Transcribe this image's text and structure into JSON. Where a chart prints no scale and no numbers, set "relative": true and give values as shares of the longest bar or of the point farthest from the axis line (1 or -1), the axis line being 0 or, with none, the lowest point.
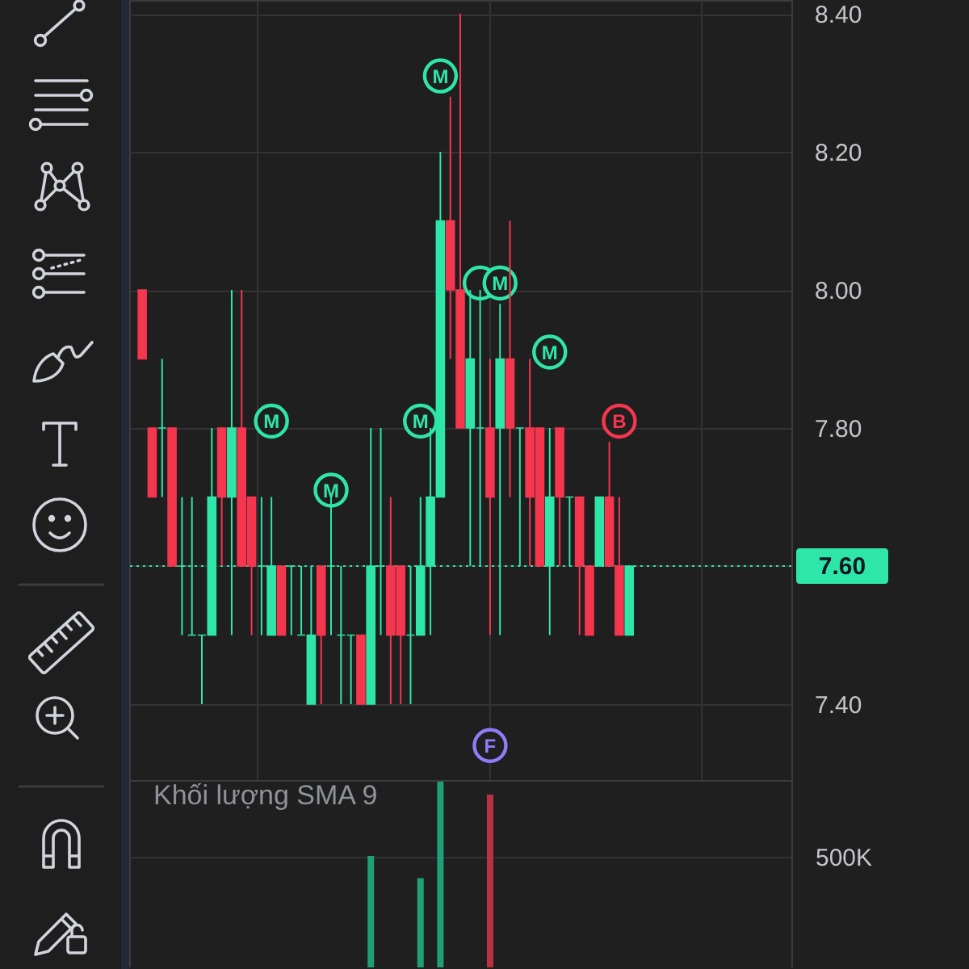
{
  "chart_data": [
    {
      "type": "candlestick",
      "categories": [
        null,
        null,
        null,
        null,
        null,
        null,
        null,
        null,
        null,
        null,
        null,
        null,
        null,
        null,
        null,
        null,
        null,
        null,
        null,
        null,
        null,
        null,
        null,
        null,
        null,
        null,
        null,
        null,
        null,
        null,
        null,
        null,
        null,
        null,
        null,
        null,
        null,
        null,
        null,
        null,
        null,
        null,
        null,
        null,
        null,
        null,
        null,
        null,
        null,
        null,
        null,
        null,
        null,
        null,
        null,
        null,
        null,
        null,
        null,
        null,
        null,
        null,
        null,
        null,
        null
      ],
      "ohlc": [
        [
          8.0,
          8.0,
          7.9,
          7.9
        ],
        [
          7.8,
          7.8,
          7.7,
          7.7
        ],
        [
          7.8,
          7.9,
          7.7,
          7.8
        ],
        [
          7.8,
          7.8,
          7.6,
          7.6
        ],
        [
          7.6,
          7.7,
          7.5,
          7.6
        ],
        [
          7.5,
          7.7,
          7.5,
          7.5
        ],
        [
          7.5,
          7.5,
          7.4,
          7.5
        ],
        [
          7.5,
          7.8,
          7.5,
          7.7
        ],
        [
          7.8,
          7.8,
          7.6,
          7.7
        ],
        [
          7.7,
          8.0,
          7.5,
          7.8
        ],
        [
          7.8,
          8.0,
          7.6,
          7.6
        ],
        [
          7.7,
          7.7,
          7.5,
          7.6
        ],
        [
          7.6,
          7.7,
          7.5,
          7.6
        ],
        [
          7.5,
          7.7,
          7.5,
          7.6
        ],
        [
          7.6,
          7.6,
          7.5,
          7.5
        ],
        [
          7.6,
          7.6,
          7.5,
          7.6
        ],
        [
          7.5,
          7.6,
          7.5,
          7.5
        ],
        [
          7.4,
          7.6,
          7.4,
          7.5
        ],
        [
          7.6,
          7.6,
          7.4,
          7.5
        ],
        [
          7.6,
          7.7,
          7.5,
          7.6
        ],
        [
          7.5,
          7.6,
          7.4,
          7.5
        ],
        [
          7.5,
          7.5,
          7.4,
          7.5
        ],
        [
          7.5,
          7.5,
          7.4,
          7.4
        ],
        [
          7.4,
          7.8,
          7.4,
          7.6
        ],
        [
          7.6,
          7.8,
          7.5,
          7.6
        ],
        [
          7.6,
          7.7,
          7.4,
          7.5
        ],
        [
          7.6,
          7.6,
          7.4,
          7.5
        ],
        [
          7.5,
          7.6,
          7.4,
          7.5
        ],
        [
          7.5,
          7.7,
          7.5,
          7.6
        ],
        [
          7.6,
          7.8,
          7.5,
          7.7
        ],
        [
          7.7,
          8.2,
          7.7,
          8.1
        ],
        [
          8.1,
          8.28,
          7.9,
          8.0
        ],
        [
          8.0,
          8.4,
          7.8,
          7.8
        ],
        [
          7.8,
          8.0,
          7.6,
          7.9
        ],
        [
          7.8,
          8.0,
          7.6,
          7.8
        ],
        [
          7.8,
          7.9,
          7.5,
          7.7
        ],
        [
          7.8,
          7.98,
          7.5,
          7.9
        ],
        [
          7.9,
          8.1,
          7.7,
          7.8
        ],
        [
          7.8,
          7.8,
          7.6,
          7.8
        ],
        [
          7.8,
          7.9,
          7.6,
          7.7
        ],
        [
          7.8,
          7.8,
          7.6,
          7.6
        ],
        [
          7.6,
          7.8,
          7.5,
          7.7
        ],
        [
          7.8,
          7.8,
          7.6,
          7.7
        ],
        [
          7.7,
          7.7,
          7.6,
          7.7
        ],
        [
          7.7,
          7.7,
          7.5,
          7.6
        ],
        [
          7.6,
          7.6,
          7.5,
          7.5
        ],
        [
          7.6,
          7.7,
          7.6,
          7.7
        ],
        [
          7.7,
          7.78,
          7.6,
          7.6
        ],
        [
          7.6,
          7.7,
          7.5,
          7.5
        ],
        [
          7.5,
          7.6,
          7.5,
          7.6
        ],
        null,
        null,
        null,
        null,
        null,
        null,
        null,
        null,
        null,
        null,
        null,
        null,
        null,
        null,
        null
      ],
      "colors": [
        "#f5364f",
        "#f5364f",
        "#2ee6a8",
        "#f5364f",
        "#2ee6a8",
        "#2ee6a8",
        "#2ee6a8",
        "#2ee6a8",
        "#f5364f",
        "#2ee6a8",
        "#f5364f",
        "#f5364f",
        "#2ee6a8",
        "#2ee6a8",
        "#f5364f",
        "#2ee6a8",
        "#2ee6a8",
        "#2ee6a8",
        "#f5364f",
        "#2ee6a8",
        "#2ee6a8",
        "#2ee6a8",
        "#f5364f",
        "#2ee6a8",
        "#2ee6a8",
        "#f5364f",
        "#f5364f",
        "#2ee6a8",
        "#2ee6a8",
        "#2ee6a8",
        "#2ee6a8",
        "#f5364f",
        "#f5364f",
        "#2ee6a8",
        "#2ee6a8",
        "#f5364f",
        "#2ee6a8",
        "#f5364f",
        "#2ee6a8",
        "#f5364f",
        "#f5364f",
        "#2ee6a8",
        "#f5364f",
        "#2ee6a8",
        "#f5364f",
        "#f5364f",
        "#2ee6a8",
        "#f5364f",
        "#f5364f",
        "#2ee6a8",
        null,
        null,
        null,
        null,
        null,
        null,
        null,
        null,
        null,
        null,
        null,
        null,
        null,
        null,
        null
      ],
      "series": [
        {
          "type": "scatter",
          "marker": "circle",
          "values": [
            null,
            null,
            null,
            null,
            null,
            null,
            null,
            null,
            null,
            null,
            null,
            null,
            null,
            7.81,
            null,
            null,
            null,
            null,
            null,
            7.71,
            null,
            null,
            null,
            null,
            null,
            null,
            null,
            null,
            7.81,
            null,
            8.31,
            null,
            null,
            null,
            8.01,
            7.34,
            8.01,
            null,
            null,
            null,
            null,
            7.91,
            null,
            null,
            null,
            null,
            null,
            null,
            7.81,
            null,
            null,
            null,
            null,
            null,
            null,
            null,
            null,
            null,
            null,
            null,
            null,
            null,
            null,
            null,
            null
          ],
          "value_labels": [
            null,
            null,
            null,
            null,
            null,
            null,
            null,
            null,
            null,
            null,
            null,
            null,
            null,
            "M",
            null,
            null,
            null,
            null,
            null,
            "M",
            null,
            null,
            null,
            null,
            null,
            null,
            null,
            null,
            "M",
            null,
            "M",
            null,
            null,
            null,
            null,
            "F",
            "M",
            null,
            null,
            null,
            null,
            "M",
            null,
            null,
            null,
            null,
            null,
            null,
            "B",
            null,
            null,
            null,
            null,
            null,
            null,
            null,
            null,
            null,
            null,
            null,
            null,
            null,
            null,
            null,
            null
          ],
          "colors": [
            null,
            null,
            null,
            null,
            null,
            null,
            null,
            null,
            null,
            null,
            null,
            null,
            null,
            "#2ee6a8",
            null,
            null,
            null,
            null,
            null,
            "#2ee6a8",
            null,
            null,
            null,
            null,
            null,
            null,
            null,
            null,
            "#2ee6a8",
            null,
            "#2ee6a8",
            null,
            null,
            null,
            "#2ee6a8",
            "#8f7cf7",
            "#2ee6a8",
            null,
            null,
            null,
            null,
            "#2ee6a8",
            null,
            null,
            null,
            null,
            null,
            null,
            "#f5364f",
            null,
            null,
            null,
            null,
            null,
            null,
            null,
            null,
            null,
            null,
            null,
            null,
            null,
            null,
            null,
            null
          ]
        }
      ],
      "ylim": [
        7.29,
        8.42
      ],
      "yticks": [
        {
          "value": 7.4,
          "label": "7.40"
        },
        {
          "value": 7.6,
          "label": null
        },
        {
          "value": 7.8,
          "label": "7.80"
        },
        {
          "value": 8.0,
          "label": "8.00"
        },
        {
          "value": 8.2,
          "label": "8.20"
        },
        {
          "value": 8.4,
          "label": "8.40"
        }
      ],
      "ref_lines": [
        {
          "axis": "y",
          "value": 7.6,
          "label": "7.60",
          "color": "#2ee6a8",
          "line_style": "dotted"
        }
      ],
      "grid": true,
      "tick_labels": "y"
    },
    {
      "type": "bar",
      "title": "Khối lượng SMA 9",
      "relative": true,
      "categories": [
        null,
        null,
        null,
        null,
        null,
        null,
        null,
        null,
        null,
        null,
        null,
        null,
        null,
        null,
        null,
        null,
        null,
        null,
        null,
        null,
        null,
        null,
        null,
        null,
        null,
        null,
        null,
        null,
        null,
        null,
        null,
        null,
        null,
        null,
        null,
        null,
        null,
        null,
        null,
        null,
        null,
        null,
        null,
        null,
        null,
        null,
        null,
        null,
        null,
        null,
        null,
        null,
        null,
        null,
        null,
        null,
        null,
        null,
        null,
        null,
        null,
        null,
        null,
        null,
        null
      ],
      "values": [
        null,
        null,
        null,
        null,
        null,
        null,
        null,
        null,
        null,
        null,
        null,
        null,
        null,
        null,
        null,
        null,
        null,
        null,
        null,
        null,
        null,
        null,
        null,
        0.6,
        null,
        null,
        null,
        null,
        0.48,
        null,
        1,
        null,
        null,
        null,
        null,
        0.93,
        null,
        null,
        null,
        null,
        null,
        null,
        null,
        null,
        null,
        null,
        null,
        null,
        null,
        null,
        null,
        null,
        null,
        null,
        null,
        null,
        null,
        null,
        null,
        null,
        null,
        null,
        null,
        null,
        null
      ],
      "colors": [
        null,
        null,
        null,
        null,
        null,
        null,
        null,
        null,
        null,
        null,
        null,
        null,
        null,
        null,
        null,
        null,
        null,
        null,
        null,
        null,
        null,
        null,
        null,
        "#1f9e78",
        null,
        null,
        null,
        null,
        "#1f9e78",
        null,
        "#1f9e78",
        null,
        null,
        null,
        null,
        "#b83342",
        null,
        null,
        null,
        null,
        null,
        null,
        null,
        null,
        null,
        null,
        null,
        null,
        null,
        null,
        null,
        null,
        null,
        null,
        null,
        null,
        null,
        null,
        null,
        null,
        null,
        null,
        null,
        null,
        null
      ],
      "ref_lines": [
        {
          "axis": "y",
          "value": 0.59,
          "label": "500K",
          "color": "#323336"
        }
      ],
      "tick_labels": false
    }
  ]
}
